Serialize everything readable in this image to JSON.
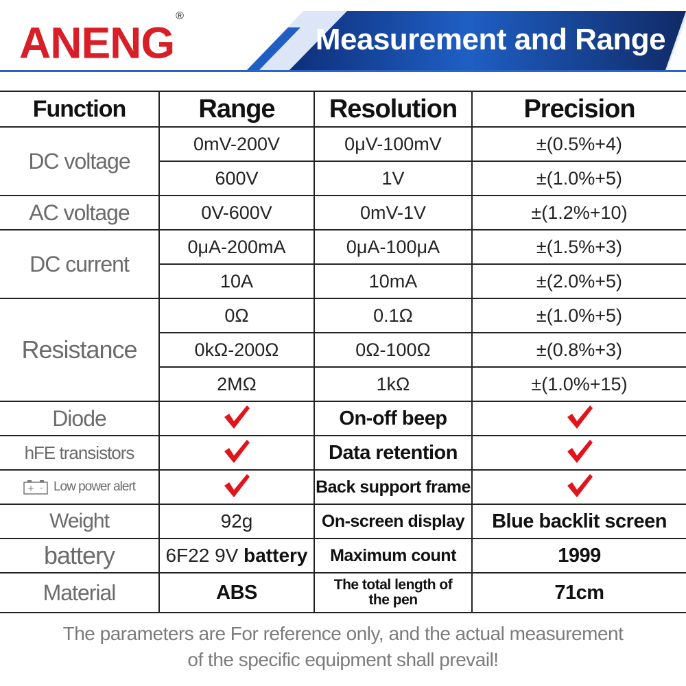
{
  "brand": {
    "logo": "ANENG",
    "registered": "®"
  },
  "banner": {
    "title": "Measurement and Range",
    "accent": "#1f5fc4",
    "dark": "#102a66"
  },
  "colors": {
    "check": "#e2141b",
    "label_gray": "#6b6b6b"
  },
  "table": {
    "headers": [
      "Function",
      "Range",
      "Resolution",
      "Precision"
    ],
    "groups": [
      {
        "function": "DC voltage",
        "rows": [
          {
            "range": "0mV-200V",
            "resolution": "0μV-100mV",
            "precision": "±(0.5%+4)"
          },
          {
            "range": "600V",
            "resolution": "1V",
            "precision": "±(1.0%+5)"
          }
        ]
      },
      {
        "function": "AC voltage",
        "rows": [
          {
            "range": "0V-600V",
            "resolution": "0mV-1V",
            "precision": "±(1.2%+10)"
          }
        ]
      },
      {
        "function": "DC current",
        "rows": [
          {
            "range": "0μA-200mA",
            "resolution": "0μA-100μA",
            "precision": "±(1.5%+3)"
          },
          {
            "range": "10A",
            "resolution": "10mA",
            "precision": "±(2.0%+5)"
          }
        ]
      },
      {
        "function": "Resistance",
        "rows": [
          {
            "range": "0Ω",
            "resolution": "0.1Ω",
            "precision": "±(1.0%+5)"
          },
          {
            "range": "0kΩ-200Ω",
            "resolution": "0Ω-100Ω",
            "precision": "±(0.8%+3)"
          },
          {
            "range": "2MΩ",
            "resolution": "1kΩ",
            "precision": "±(1.0%+15)"
          }
        ]
      }
    ],
    "features": [
      {
        "label": "Diode",
        "left": "check-icon",
        "feature": "On-off beep",
        "right": "check-icon"
      },
      {
        "label": "hFE transistors",
        "left": "check-icon",
        "feature": "Data retention",
        "right": "check-icon"
      },
      {
        "label": "Low power alert",
        "icon": "battery-icon",
        "left": "check-icon",
        "feature": "Back support frame",
        "right": "check-icon"
      }
    ],
    "specs": [
      {
        "label": "Weight",
        "value": "92g",
        "name": "On-screen display",
        "info": "Blue backlit screen"
      },
      {
        "label": "battery",
        "value_a": "6F22 9V ",
        "value_b": "battery",
        "name": "Maximum count",
        "info": "1999"
      },
      {
        "label": "Material",
        "value": "ABS",
        "name_line1": "The total length of",
        "name_line2": "the pen",
        "info": "71cm"
      }
    ]
  },
  "footer": {
    "line1": "The parameters are For reference only, and the actual measurement",
    "line2": "of the specific equipment shall prevail!"
  }
}
